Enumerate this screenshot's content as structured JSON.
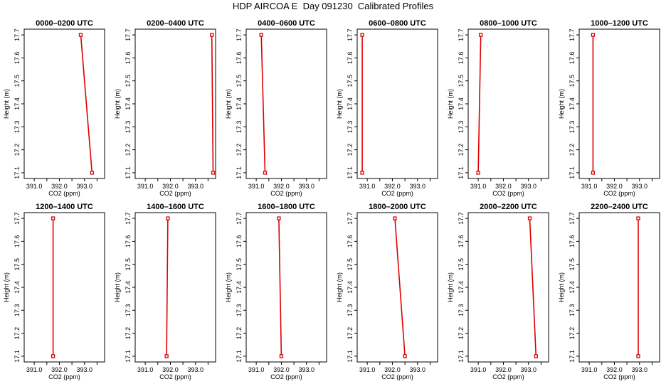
{
  "title": "HDP AIRCOA E  Day 091230  Calibrated Profiles",
  "colors": {
    "line": "#dd0000",
    "marker": "#dd0000",
    "axis": "#000000"
  },
  "chart_data": [
    {
      "type": "line",
      "title": "0000–0200 UTC",
      "xlabel": "CO2 (ppm)",
      "ylabel": "Height (m)",
      "xlim": [
        390.6,
        393.8
      ],
      "ylim": [
        17.075,
        17.725
      ],
      "xticks": [
        "391.0",
        "392.0",
        "393.0"
      ],
      "yticks": [
        "17.1",
        "17.2",
        "17.3",
        "17.4",
        "17.5",
        "17.6",
        "17.7"
      ],
      "grid": false,
      "x": [
        392.85,
        393.3
      ],
      "y": [
        17.7,
        17.1
      ]
    },
    {
      "type": "line",
      "title": "0200–0400 UTC",
      "xlabel": "CO2 (ppm)",
      "ylabel": "Height (m)",
      "xlim": [
        390.6,
        393.8
      ],
      "ylim": [
        17.075,
        17.725
      ],
      "xticks": [
        "391.0",
        "392.0",
        "393.0"
      ],
      "yticks": [
        "17.1",
        "17.2",
        "17.3",
        "17.4",
        "17.5",
        "17.6",
        "17.7"
      ],
      "grid": false,
      "x": [
        393.65,
        393.7
      ],
      "y": [
        17.7,
        17.1
      ]
    },
    {
      "type": "line",
      "title": "0400–0600 UTC",
      "xlabel": "CO2 (ppm)",
      "ylabel": "Height (m)",
      "xlim": [
        390.6,
        393.8
      ],
      "ylim": [
        17.075,
        17.725
      ],
      "xticks": [
        "391.0",
        "392.0",
        "393.0"
      ],
      "yticks": [
        "17.1",
        "17.2",
        "17.3",
        "17.4",
        "17.5",
        "17.6",
        "17.7"
      ],
      "grid": false,
      "x": [
        391.2,
        391.35
      ],
      "y": [
        17.7,
        17.1
      ]
    },
    {
      "type": "line",
      "title": "0600–0800 UTC",
      "xlabel": "CO2 (ppm)",
      "ylabel": "Height (m)",
      "xlim": [
        390.6,
        393.8
      ],
      "ylim": [
        17.075,
        17.725
      ],
      "xticks": [
        "391.0",
        "392.0",
        "393.0"
      ],
      "yticks": [
        "17.1",
        "17.2",
        "17.3",
        "17.4",
        "17.5",
        "17.6",
        "17.7"
      ],
      "grid": false,
      "x": [
        390.8,
        390.8
      ],
      "y": [
        17.7,
        17.1
      ]
    },
    {
      "type": "line",
      "title": "0800–1000 UTC",
      "xlabel": "CO2 (ppm)",
      "ylabel": "Height (m)",
      "xlim": [
        390.6,
        393.8
      ],
      "ylim": [
        17.075,
        17.725
      ],
      "xticks": [
        "391.0",
        "392.0",
        "393.0"
      ],
      "yticks": [
        "17.1",
        "17.2",
        "17.3",
        "17.4",
        "17.5",
        "17.6",
        "17.7"
      ],
      "grid": false,
      "x": [
        391.1,
        391.0
      ],
      "y": [
        17.7,
        17.1
      ]
    },
    {
      "type": "line",
      "title": "1000–1200 UTC",
      "xlabel": "CO2 (ppm)",
      "ylabel": "Height (m)",
      "xlim": [
        390.6,
        393.8
      ],
      "ylim": [
        17.075,
        17.725
      ],
      "xticks": [
        "391.0",
        "392.0",
        "393.0"
      ],
      "yticks": [
        "17.1",
        "17.2",
        "17.3",
        "17.4",
        "17.5",
        "17.6",
        "17.7"
      ],
      "grid": false,
      "x": [
        391.15,
        391.15
      ],
      "y": [
        17.7,
        17.1
      ]
    },
    {
      "type": "line",
      "title": "1200–1400 UTC",
      "xlabel": "CO2 (ppm)",
      "ylabel": "Height (m)",
      "xlim": [
        390.6,
        393.8
      ],
      "ylim": [
        17.075,
        17.725
      ],
      "xticks": [
        "391.0",
        "392.0",
        "393.0"
      ],
      "yticks": [
        "17.1",
        "17.2",
        "17.3",
        "17.4",
        "17.5",
        "17.6",
        "17.7"
      ],
      "grid": false,
      "x": [
        391.75,
        391.75
      ],
      "y": [
        17.7,
        17.1
      ]
    },
    {
      "type": "line",
      "title": "1400–1600 UTC",
      "xlabel": "CO2 (ppm)",
      "ylabel": "Height (m)",
      "xlim": [
        390.6,
        393.8
      ],
      "ylim": [
        17.075,
        17.725
      ],
      "xticks": [
        "391.0",
        "392.0",
        "393.0"
      ],
      "yticks": [
        "17.1",
        "17.2",
        "17.3",
        "17.4",
        "17.5",
        "17.6",
        "17.7"
      ],
      "grid": false,
      "x": [
        391.9,
        391.85
      ],
      "y": [
        17.7,
        17.1
      ]
    },
    {
      "type": "line",
      "title": "1600–1800 UTC",
      "xlabel": "CO2 (ppm)",
      "ylabel": "Height (m)",
      "xlim": [
        390.6,
        393.8
      ],
      "ylim": [
        17.075,
        17.725
      ],
      "xticks": [
        "391.0",
        "392.0",
        "393.0"
      ],
      "yticks": [
        "17.1",
        "17.2",
        "17.3",
        "17.4",
        "17.5",
        "17.6",
        "17.7"
      ],
      "grid": false,
      "x": [
        391.9,
        392.0
      ],
      "y": [
        17.7,
        17.1
      ]
    },
    {
      "type": "line",
      "title": "1800–2000 UTC",
      "xlabel": "CO2 (ppm)",
      "ylabel": "Height (m)",
      "xlim": [
        390.6,
        393.8
      ],
      "ylim": [
        17.075,
        17.725
      ],
      "xticks": [
        "391.0",
        "392.0",
        "393.0"
      ],
      "yticks": [
        "17.1",
        "17.2",
        "17.3",
        "17.4",
        "17.5",
        "17.6",
        "17.7"
      ],
      "grid": false,
      "x": [
        392.1,
        392.5
      ],
      "y": [
        17.7,
        17.1
      ]
    },
    {
      "type": "line",
      "title": "2000–2200 UTC",
      "xlabel": "CO2 (ppm)",
      "ylabel": "Height (m)",
      "xlim": [
        390.6,
        393.8
      ],
      "ylim": [
        17.075,
        17.725
      ],
      "xticks": [
        "391.0",
        "392.0",
        "393.0"
      ],
      "yticks": [
        "17.1",
        "17.2",
        "17.3",
        "17.4",
        "17.5",
        "17.6",
        "17.7"
      ],
      "grid": false,
      "x": [
        393.05,
        393.3
      ],
      "y": [
        17.7,
        17.1
      ]
    },
    {
      "type": "line",
      "title": "2200–2400 UTC",
      "xlabel": "CO2 (ppm)",
      "ylabel": "Height (m)",
      "xlim": [
        390.6,
        393.8
      ],
      "ylim": [
        17.075,
        17.725
      ],
      "xticks": [
        "391.0",
        "392.0",
        "393.0"
      ],
      "yticks": [
        "17.1",
        "17.2",
        "17.3",
        "17.4",
        "17.5",
        "17.6",
        "17.7"
      ],
      "grid": false,
      "x": [
        392.95,
        392.95
      ],
      "y": [
        17.7,
        17.1
      ]
    }
  ]
}
